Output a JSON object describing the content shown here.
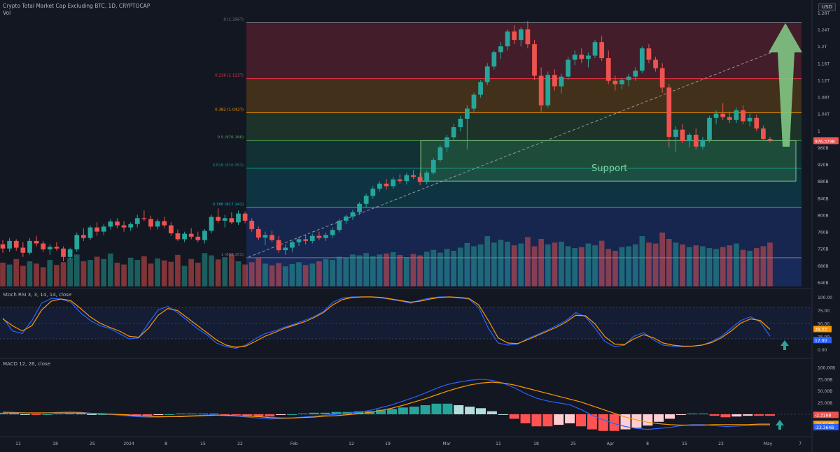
{
  "header": {
    "symbol_line": "Crypto Total Market Cap Excluding BTC, 1D, CRYPTOCAP",
    "volume_label": "Vol",
    "currency_button": "USD"
  },
  "colors": {
    "background": "#131722",
    "up": "#26a69a",
    "down": "#ef5350",
    "stoch_k": "#2962ff",
    "stoch_d": "#ff9800",
    "macd": "#2962ff",
    "signal": "#ff9800",
    "arrow": "#81c784"
  },
  "chart_data": [
    {
      "type": "candlestick",
      "name": "price",
      "y_tick_labels": [
        "1.28T",
        "1.24T",
        "1.2T",
        "1.16T",
        "1.12T",
        "1.08T",
        "1.04T",
        "1",
        "960B",
        "920B",
        "880B",
        "840B",
        "800B",
        "760B",
        "720B",
        "680B",
        "640B"
      ],
      "ylim": [
        630,
        1280
      ],
      "x_tick_labels": [
        "11",
        "18",
        "25",
        "2024",
        "8",
        "15",
        "22",
        "Feb",
        "12",
        "19",
        "Mar",
        "11",
        "18",
        "25",
        "Apr",
        "8",
        "15",
        "22",
        "May",
        "7"
      ],
      "last_price_label": "976.379B",
      "fib_levels": [
        {
          "label": "0 (1.256T)",
          "value": 1256,
          "color": "#787b86"
        },
        {
          "label": "0.236 (1.123T)",
          "value": 1123,
          "color": "#f23645"
        },
        {
          "label": "0.382 (1.042T)",
          "value": 1042,
          "color": "#ff9800"
        },
        {
          "label": "0.5 (976.166)",
          "value": 976.2,
          "color": "#4caf50"
        },
        {
          "label": "0.618 (910.351)",
          "value": 910.4,
          "color": "#089981"
        },
        {
          "label": "0.786 (817.141)",
          "value": 817.1,
          "color": "#00bcd4"
        },
        {
          "label": "1 (698.151)",
          "value": 698.2,
          "color": "#787b86"
        }
      ],
      "support_zone": {
        "label": "Support",
        "top": 976,
        "bottom": 880
      },
      "candles": [
        [
          730,
          740,
          710,
          720
        ],
        [
          720,
          745,
          712,
          738
        ],
        [
          738,
          742,
          715,
          722
        ],
        [
          722,
          735,
          700,
          710
        ],
        [
          710,
          745,
          705,
          738
        ],
        [
          738,
          750,
          725,
          732
        ],
        [
          732,
          738,
          712,
          718
        ],
        [
          718,
          730,
          705,
          724
        ],
        [
          724,
          735,
          715,
          720
        ],
        [
          720,
          725,
          690,
          700
        ],
        [
          700,
          722,
          695,
          718
        ],
        [
          718,
          758,
          712,
          752
        ],
        [
          752,
          768,
          738,
          745
        ],
        [
          745,
          775,
          740,
          770
        ],
        [
          770,
          782,
          750,
          760
        ],
        [
          760,
          778,
          752,
          772
        ],
        [
          772,
          790,
          765,
          784
        ],
        [
          784,
          792,
          768,
          775
        ],
        [
          775,
          785,
          760,
          770
        ],
        [
          770,
          782,
          762,
          778
        ],
        [
          778,
          800,
          770,
          792
        ],
        [
          792,
          810,
          785,
          790
        ],
        [
          790,
          798,
          765,
          772
        ],
        [
          772,
          790,
          765,
          785
        ],
        [
          785,
          795,
          768,
          775
        ],
        [
          775,
          782,
          750,
          756
        ],
        [
          756,
          765,
          738,
          742
        ],
        [
          742,
          760,
          735,
          755
        ],
        [
          755,
          768,
          742,
          748
        ],
        [
          748,
          760,
          735,
          740
        ],
        [
          740,
          766,
          732,
          762
        ],
        [
          762,
          800,
          756,
          795
        ],
        [
          795,
          815,
          780,
          786
        ],
        [
          786,
          800,
          770,
          792
        ],
        [
          792,
          806,
          778,
          782
        ],
        [
          782,
          810,
          776,
          803
        ],
        [
          803,
          808,
          780,
          786
        ],
        [
          786,
          792,
          760,
          766
        ],
        [
          766,
          772,
          740,
          746
        ],
        [
          746,
          760,
          728,
          752
        ],
        [
          752,
          762,
          735,
          740
        ],
        [
          740,
          750,
          710,
          716
        ],
        [
          716,
          730,
          705,
          722
        ],
        [
          722,
          738,
          712,
          735
        ],
        [
          735,
          748,
          726,
          742
        ],
        [
          742,
          752,
          730,
          738
        ],
        [
          738,
          755,
          732,
          750
        ],
        [
          750,
          760,
          740,
          745
        ],
        [
          745,
          758,
          738,
          752
        ],
        [
          752,
          770,
          745,
          764
        ],
        [
          764,
          790,
          758,
          786
        ],
        [
          786,
          800,
          778,
          796
        ],
        [
          796,
          812,
          788,
          806
        ],
        [
          806,
          830,
          800,
          826
        ],
        [
          826,
          850,
          818,
          845
        ],
        [
          845,
          868,
          838,
          862
        ],
        [
          862,
          880,
          855,
          874
        ],
        [
          874,
          885,
          860,
          868
        ],
        [
          868,
          890,
          862,
          884
        ],
        [
          884,
          896,
          874,
          880
        ],
        [
          880,
          900,
          872,
          894
        ],
        [
          894,
          906,
          885,
          890
        ],
        [
          890,
          900,
          870,
          878
        ],
        [
          878,
          905,
          872,
          900
        ],
        [
          900,
          935,
          896,
          930
        ],
        [
          930,
          965,
          926,
          960
        ],
        [
          960,
          990,
          950,
          984
        ],
        [
          984,
          1015,
          975,
          1008
        ],
        [
          1008,
          1035,
          998,
          1028
        ],
        [
          1028,
          1060,
          955,
          1052
        ],
        [
          1052,
          1090,
          1045,
          1085
        ],
        [
          1085,
          1120,
          1078,
          1115
        ],
        [
          1115,
          1160,
          1108,
          1152
        ],
        [
          1152,
          1190,
          1145,
          1186
        ],
        [
          1186,
          1210,
          1170,
          1200
        ],
        [
          1200,
          1240,
          1190,
          1235
        ],
        [
          1235,
          1250,
          1205,
          1215
        ],
        [
          1215,
          1245,
          1200,
          1240
        ],
        [
          1240,
          1260,
          1195,
          1205
        ],
        [
          1205,
          1215,
          1120,
          1130
        ],
        [
          1130,
          1150,
          1045,
          1060
        ],
        [
          1060,
          1140,
          1055,
          1132
        ],
        [
          1132,
          1145,
          1095,
          1105
        ],
        [
          1105,
          1135,
          1088,
          1128
        ],
        [
          1128,
          1175,
          1120,
          1168
        ],
        [
          1168,
          1190,
          1155,
          1180
        ],
        [
          1180,
          1195,
          1160,
          1170
        ],
        [
          1170,
          1185,
          1150,
          1178
        ],
        [
          1178,
          1215,
          1172,
          1210
        ],
        [
          1210,
          1225,
          1165,
          1172
        ],
        [
          1172,
          1190,
          1110,
          1118
        ],
        [
          1118,
          1130,
          1095,
          1110
        ],
        [
          1110,
          1125,
          1098,
          1120
        ],
        [
          1120,
          1135,
          1105,
          1128
        ],
        [
          1128,
          1150,
          1118,
          1142
        ],
        [
          1142,
          1200,
          1136,
          1195
        ],
        [
          1195,
          1205,
          1160,
          1168
        ],
        [
          1168,
          1175,
          1140,
          1148
        ],
        [
          1148,
          1160,
          1090,
          1102
        ],
        [
          1102,
          1110,
          960,
          985
        ],
        [
          985,
          1010,
          950,
          1002
        ],
        [
          1002,
          1015,
          970,
          975
        ],
        [
          975,
          995,
          960,
          990
        ],
        [
          990,
          1005,
          955,
          962
        ],
        [
          962,
          985,
          955,
          978
        ],
        [
          978,
          1035,
          972,
          1030
        ],
        [
          1030,
          1048,
          1015,
          1040
        ],
        [
          1040,
          1065,
          1025,
          1032
        ],
        [
          1032,
          1045,
          1018,
          1025
        ],
        [
          1025,
          1055,
          1018,
          1048
        ],
        [
          1048,
          1060,
          1015,
          1022
        ],
        [
          1022,
          1040,
          1010,
          1030
        ],
        [
          1030,
          1038,
          998,
          1005
        ],
        [
          1005,
          1012,
          975,
          980
        ],
        [
          980,
          985,
          972,
          976
        ]
      ],
      "volume": [
        52,
        48,
        60,
        45,
        55,
        50,
        42,
        58,
        47,
        53,
        62,
        70,
        55,
        58,
        65,
        60,
        72,
        52,
        48,
        63,
        58,
        66,
        50,
        61,
        57,
        54,
        69,
        45,
        60,
        52,
        73,
        68,
        59,
        64,
        70,
        55,
        48,
        53,
        62,
        50,
        46,
        51,
        44,
        49,
        53,
        47,
        50,
        55,
        60,
        58,
        65,
        62,
        70,
        68,
        73,
        66,
        70,
        72,
        75,
        69,
        64,
        71,
        68,
        76,
        80,
        74,
        82,
        78,
        85,
        95,
        88,
        92,
        110,
        96,
        102,
        98,
        90,
        94,
        108,
        88,
        104,
        92,
        96,
        98,
        88,
        84,
        86,
        94,
        90,
        100,
        82,
        78,
        86,
        88,
        92,
        110,
        96,
        94,
        118,
        104,
        96,
        92,
        86,
        90,
        88,
        84,
        82,
        86,
        90,
        94,
        80,
        78,
        84,
        88,
        96
      ]
    },
    {
      "type": "line",
      "name": "Stoch RSI",
      "title": "Stoch RSI 3, 3, 14, 14, close",
      "y_tick_labels": [
        "100.00",
        "75.00",
        "50.00",
        "25.00",
        "0.00"
      ],
      "ylim": [
        0,
        100
      ],
      "bands": [
        80,
        20
      ],
      "value_labels": [
        "38.33",
        "17.00"
      ],
      "series": [
        {
          "name": "K",
          "values": [
            60,
            35,
            30,
            55,
            88,
            97,
            96,
            90,
            70,
            55,
            45,
            40,
            30,
            20,
            22,
            50,
            75,
            82,
            70,
            55,
            40,
            28,
            12,
            5,
            2,
            8,
            20,
            30,
            35,
            42,
            48,
            55,
            62,
            72,
            90,
            98,
            100,
            100,
            100,
            98,
            95,
            92,
            88,
            94,
            98,
            100,
            100,
            98,
            96,
            80,
            40,
            12,
            8,
            10,
            20,
            28,
            36,
            45,
            55,
            70,
            62,
            40,
            15,
            5,
            8,
            25,
            32,
            18,
            8,
            6,
            5,
            6,
            8,
            15,
            25,
            40,
            55,
            62,
            52,
            25
          ]
        },
        {
          "name": "D",
          "values": [
            58,
            45,
            35,
            45,
            75,
            92,
            96,
            93,
            78,
            62,
            50,
            42,
            35,
            25,
            23,
            40,
            65,
            78,
            74,
            60,
            46,
            32,
            18,
            8,
            4,
            6,
            15,
            25,
            32,
            40,
            46,
            52,
            60,
            70,
            85,
            95,
            99,
            100,
            100,
            99,
            96,
            93,
            90,
            92,
            96,
            99,
            100,
            99,
            97,
            85,
            55,
            22,
            12,
            11,
            18,
            26,
            34,
            42,
            52,
            65,
            64,
            48,
            24,
            10,
            9,
            20,
            28,
            22,
            12,
            8,
            6,
            6,
            8,
            13,
            22,
            35,
            50,
            58,
            55,
            38
          ]
        }
      ]
    },
    {
      "type": "bar+line",
      "name": "MACD",
      "title": "MACD 12, 26, close",
      "y_tick_labels": [
        "100.00B",
        "75.00B",
        "50.00B",
        "25.00B",
        "0.00"
      ],
      "value_labels": [
        "-2.316B",
        "-21.018B",
        "-23.364B"
      ],
      "series": [
        {
          "name": "MACD",
          "values": [
            5,
            4,
            3,
            2,
            3,
            4,
            5,
            4,
            2,
            1,
            -1,
            -3,
            -5,
            -6,
            -6,
            -5,
            -4,
            -3,
            -2,
            -1,
            -3,
            -4,
            -6,
            -8,
            -10,
            -9,
            -8,
            -6,
            -4,
            -2,
            0,
            2,
            5,
            8,
            14,
            20,
            28,
            36,
            45,
            55,
            63,
            68,
            72,
            74,
            72,
            66,
            56,
            44,
            34,
            28,
            24,
            20,
            10,
            -2,
            -12,
            -20,
            -26,
            -30,
            -32,
            -30,
            -28,
            -24,
            -22,
            -22,
            -24,
            -26,
            -25,
            -24,
            -23,
            -23
          ]
        },
        {
          "name": "Signal",
          "values": [
            3,
            3,
            3,
            3,
            3,
            3,
            3,
            3,
            2,
            1,
            0,
            -1,
            -3,
            -4,
            -5,
            -5,
            -5,
            -4,
            -3,
            -2,
            -2,
            -3,
            -4,
            -5,
            -7,
            -8,
            -8,
            -7,
            -6,
            -4,
            -3,
            -1,
            1,
            4,
            8,
            13,
            19,
            26,
            33,
            41,
            49,
            56,
            62,
            66,
            68,
            66,
            62,
            56,
            50,
            44,
            38,
            32,
            26,
            18,
            10,
            2,
            -6,
            -12,
            -17,
            -20,
            -22,
            -23,
            -23,
            -23,
            -22,
            -22,
            -22,
            -22,
            -21,
            -21
          ]
        }
      ]
    }
  ]
}
